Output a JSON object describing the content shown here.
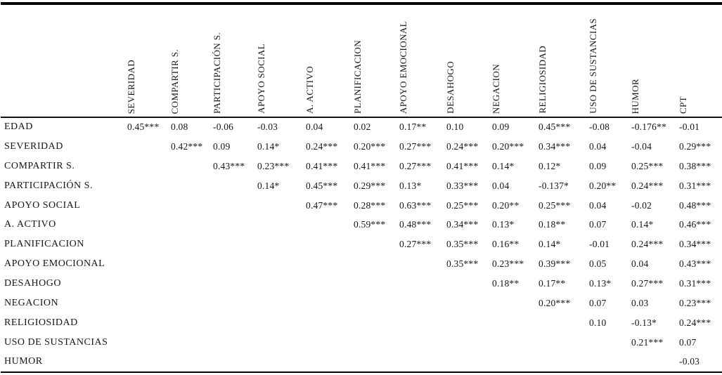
{
  "table": {
    "corner_label": "",
    "columns": [
      "SEVERIDAD",
      "COMPARTIR S.",
      "PARTICIPACIÓN S.",
      "APOYO SOCIAL",
      "A. ACTIVO",
      "PLANIFICACION",
      "APOYO EMOCIONAL",
      "DESAHOGO",
      "NEGACION",
      "RELIGIOSIDAD",
      "USO DE SUSTANCIAS",
      "HUMOR",
      "CPT"
    ],
    "rows": [
      {
        "label": "EDAD",
        "values": [
          "0.45***",
          "0.08",
          "-0.06",
          "-0.03",
          "0.04",
          "0.02",
          "0.17**",
          "0.10",
          "0.09",
          "0.45***",
          "-0.08",
          "-0.176**",
          "-0.01"
        ]
      },
      {
        "label": "SEVERIDAD",
        "values": [
          "",
          "0.42***",
          "0.09",
          "0.14*",
          "0.24***",
          "0.20***",
          "0.27***",
          "0.24***",
          "0.20***",
          "0.34***",
          "0.04",
          "-0.04",
          "0.29***"
        ]
      },
      {
        "label": "COMPARTIR S.",
        "values": [
          "",
          "",
          "0.43***",
          "0.23***",
          "0.41***",
          "0.41***",
          "0.27***",
          "0.41***",
          "0.14*",
          "0.12*",
          "0.09",
          "0.25***",
          "0.38***"
        ]
      },
      {
        "label": "PARTICIPACIÓN S.",
        "values": [
          "",
          "",
          "",
          "0.14*",
          "0.45***",
          "0.29***",
          "0.13*",
          "0.33***",
          "0.04",
          "-0.137*",
          "0.20**",
          "0.24***",
          "0.31***"
        ]
      },
      {
        "label": "APOYO SOCIAL",
        "values": [
          "",
          "",
          "",
          "",
          "0.47***",
          "0.28***",
          "0.63***",
          "0.25***",
          "0.20**",
          "0.25***",
          "0.04",
          "-0.02",
          "0.48***"
        ]
      },
      {
        "label": "A. ACTIVO",
        "values": [
          "",
          "",
          "",
          "",
          "",
          "0.59***",
          "0.48***",
          "0.34***",
          "0.13*",
          "0.18**",
          "0.07",
          "0.14*",
          "0.46***"
        ]
      },
      {
        "label": "PLANIFICACION",
        "values": [
          "",
          "",
          "",
          "",
          "",
          "",
          "0.27***",
          "0.35***",
          "0.16**",
          "0.14*",
          "-0.01",
          "0.24***",
          "0.34***"
        ]
      },
      {
        "label": "APOYO EMOCIONAL",
        "values": [
          "",
          "",
          "",
          "",
          "",
          "",
          "",
          "0.35***",
          "0.23***",
          "0.39***",
          "0.05",
          "0.04",
          "0.43***"
        ]
      },
      {
        "label": "DESAHOGO",
        "values": [
          "",
          "",
          "",
          "",
          "",
          "",
          "",
          "",
          "0.18**",
          "0.17**",
          "0.13*",
          "0.27***",
          "0.31***"
        ]
      },
      {
        "label": "NEGACION",
        "values": [
          "",
          "",
          "",
          "",
          "",
          "",
          "",
          "",
          "",
          "0.20***",
          "0.07",
          "0.03",
          "0.23***"
        ]
      },
      {
        "label": "RELIGIOSIDAD",
        "values": [
          "",
          "",
          "",
          "",
          "",
          "",
          "",
          "",
          "",
          "",
          "0.10",
          "-0.13*",
          "0.24***"
        ]
      },
      {
        "label": "USO DE SUSTANCIAS",
        "values": [
          "",
          "",
          "",
          "",
          "",
          "",
          "",
          "",
          "",
          "",
          "",
          "0.21***",
          "0.07"
        ]
      },
      {
        "label": "HUMOR",
        "values": [
          "",
          "",
          "",
          "",
          "",
          "",
          "",
          "",
          "",
          "",
          "",
          "",
          "-0.03"
        ]
      }
    ]
  }
}
